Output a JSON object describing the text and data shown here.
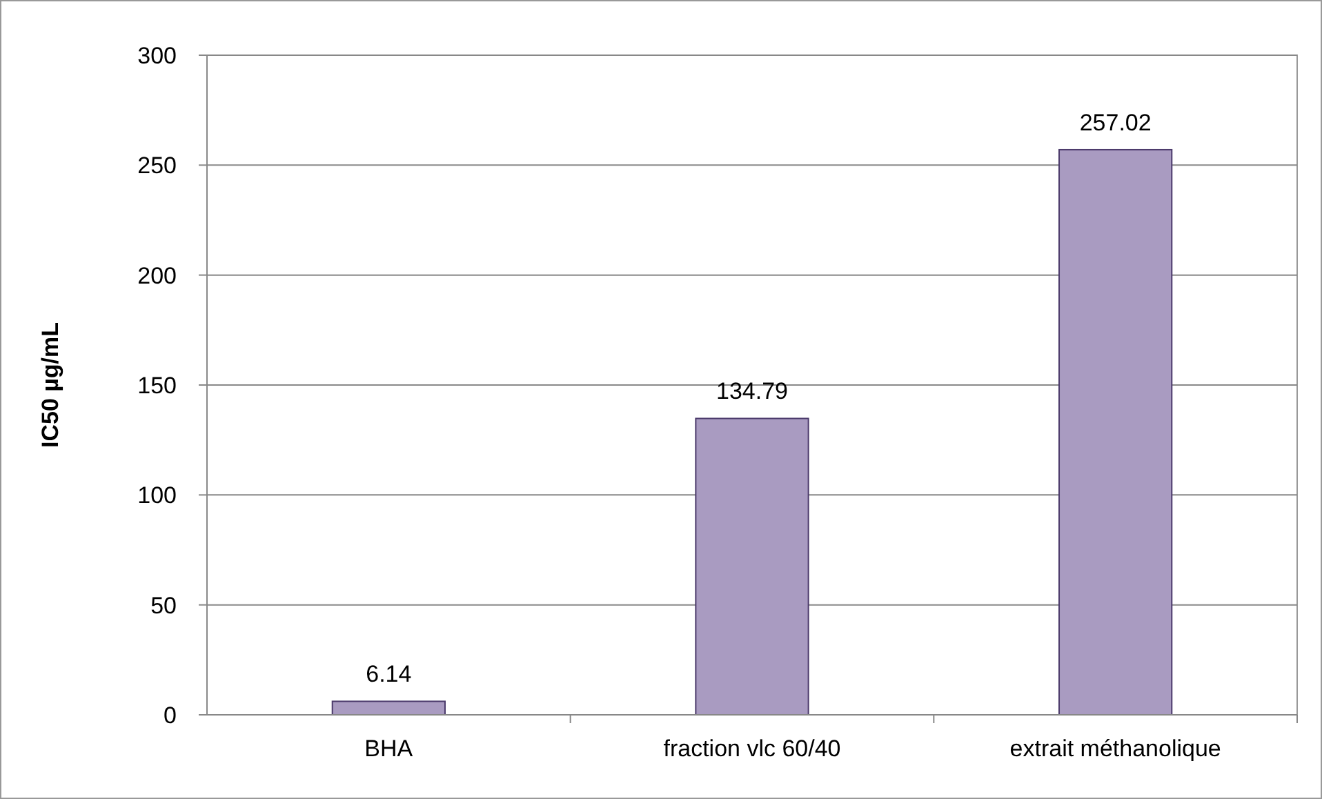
{
  "chart_data": {
    "type": "bar",
    "ylabel": "IC50 µg/mL",
    "categories": [
      "BHA",
      "fraction vlc 60/40",
      "extrait méthanolique"
    ],
    "values": [
      6.14,
      134.79,
      257.02
    ],
    "color": "#a99bc1",
    "ylim": [
      0,
      300
    ],
    "yticks": [
      0,
      50,
      100,
      150,
      200,
      250,
      300
    ],
    "grid": "y",
    "data_labels": true
  }
}
